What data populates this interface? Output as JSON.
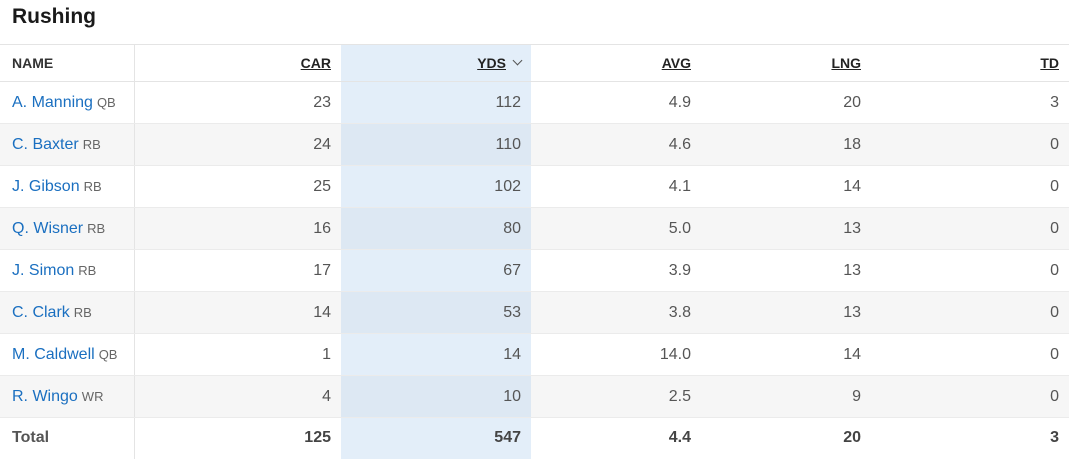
{
  "title": "Rushing",
  "columns": {
    "name": "NAME",
    "car": "CAR",
    "yds": "YDS",
    "avg": "AVG",
    "lng": "LNG",
    "td": "TD"
  },
  "sort": {
    "column": "YDS",
    "direction": "descending",
    "icon": "chevron-down-icon"
  },
  "accent_color": "#1a6fc0",
  "rows": [
    {
      "name": "A. Manning",
      "pos": "QB",
      "car": "23",
      "yds": "112",
      "avg": "4.9",
      "lng": "20",
      "td": "3"
    },
    {
      "name": "C. Baxter",
      "pos": "RB",
      "car": "24",
      "yds": "110",
      "avg": "4.6",
      "lng": "18",
      "td": "0"
    },
    {
      "name": "J. Gibson",
      "pos": "RB",
      "car": "25",
      "yds": "102",
      "avg": "4.1",
      "lng": "14",
      "td": "0"
    },
    {
      "name": "Q. Wisner",
      "pos": "RB",
      "car": "16",
      "yds": "80",
      "avg": "5.0",
      "lng": "13",
      "td": "0"
    },
    {
      "name": "J. Simon",
      "pos": "RB",
      "car": "17",
      "yds": "67",
      "avg": "3.9",
      "lng": "13",
      "td": "0"
    },
    {
      "name": "C. Clark",
      "pos": "RB",
      "car": "14",
      "yds": "53",
      "avg": "3.8",
      "lng": "13",
      "td": "0"
    },
    {
      "name": "M. Caldwell",
      "pos": "QB",
      "car": "1",
      "yds": "14",
      "avg": "14.0",
      "lng": "14",
      "td": "0"
    },
    {
      "name": "R. Wingo",
      "pos": "WR",
      "car": "4",
      "yds": "10",
      "avg": "2.5",
      "lng": "9",
      "td": "0"
    }
  ],
  "total": {
    "label": "Total",
    "car": "125",
    "yds": "547",
    "avg": "4.4",
    "lng": "20",
    "td": "3"
  }
}
